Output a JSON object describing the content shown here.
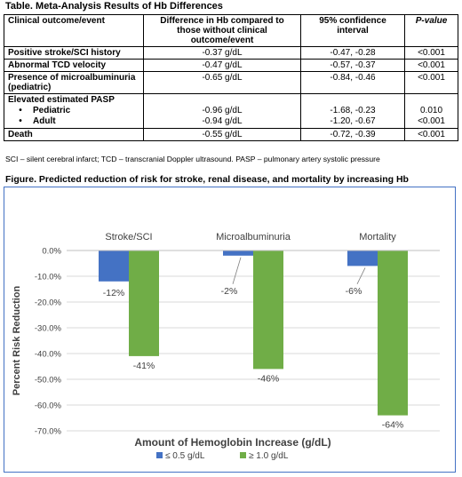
{
  "table": {
    "title": "Table. Meta-Analysis Results of Hb Differences",
    "headers": [
      "Clinical outcome/event",
      "Difference in Hb compared to those without clinical outcome/event",
      "95% confidence interval",
      "P-value"
    ],
    "rows": [
      {
        "outcome": "Positive stroke/SCI history",
        "diff": "-0.37 g/dL",
        "ci": "-0.47, -0.28",
        "p": "<0.001"
      },
      {
        "outcome": "Abnormal TCD velocity",
        "diff": "-0.47 g/dL",
        "ci": "-0.57, -0.37",
        "p": "<0.001"
      },
      {
        "outcome": "Presence of microalbuminuria (pediatric)",
        "diff": "-0.65 g/dL",
        "ci": "-0.84, -0.46",
        "p": "<0.001"
      },
      {
        "outcome": "Elevated estimated PASP",
        "sub": [
          {
            "label": "Pediatric",
            "diff": "-0.96 g/dL",
            "ci": "-1.68, -0.23",
            "p": "0.010"
          },
          {
            "label": "Adult",
            "diff": "-0.94 g/dL",
            "ci": "-1.20, -0.67",
            "p": "<0.001"
          }
        ]
      },
      {
        "outcome": "Death",
        "diff": "-0.55 g/dL",
        "ci": "-0.72, -0.39",
        "p": "<0.001"
      }
    ],
    "bullet": "•",
    "footnote": "SCI – silent cerebral infarct; TCD – transcranial Doppler ultrasound. PASP – pulmonary artery systolic pressure"
  },
  "figure": {
    "title": "Figure. Predicted reduction of risk for stroke, renal disease, and mortality by increasing Hb"
  },
  "chart_data": {
    "type": "bar",
    "categories": [
      "Stroke/SCI",
      "Microalbuminuria",
      "Mortality"
    ],
    "series": [
      {
        "name": "≤ 0.5 g/dL",
        "color": "#4472c4",
        "values": [
          -12,
          -2,
          -6
        ],
        "labels": [
          "-12%",
          "-2%",
          "-6%"
        ]
      },
      {
        "name": "≥ 1.0 g/dL",
        "color": "#70ad47",
        "values": [
          -41,
          -46,
          -64
        ],
        "labels": [
          "-41%",
          "-46%",
          "-64%"
        ]
      }
    ],
    "xlabel": "Amount of Hemoglobin Increase (g/dL)",
    "ylabel": "Percent Risk Reduction",
    "ylim": [
      -70,
      0
    ],
    "yticks": [
      0,
      -10,
      -20,
      -30,
      -40,
      -50,
      -60,
      -70
    ],
    "ytick_labels": [
      "0.0%",
      "-10.0%",
      "-20.0%",
      "-30.0%",
      "-40.0%",
      "-50.0%",
      "-60.0%",
      "-70.0%"
    ],
    "grid": true,
    "legend": "bottom"
  }
}
